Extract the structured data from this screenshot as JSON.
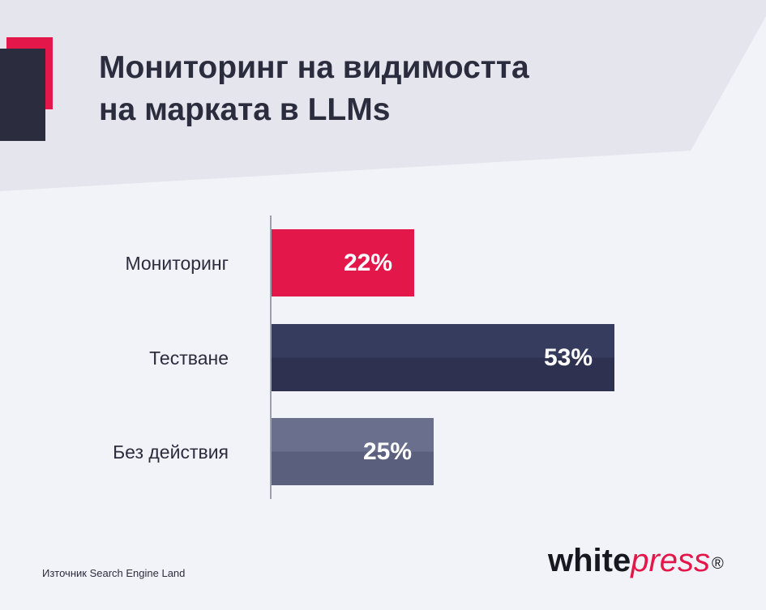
{
  "title": {
    "line1": "Мониторинг на видимостта",
    "line2": "на марката в LLMs"
  },
  "chart_data": {
    "type": "bar",
    "orientation": "horizontal",
    "title": "Мониторинг на видимостта на марката в LLMs",
    "categories": [
      "Мониторинг",
      "Тестване",
      "Без действия"
    ],
    "values": [
      22,
      53,
      25
    ],
    "value_labels": [
      "22%",
      "53%",
      "25%"
    ],
    "unit": "%",
    "xlim": [
      0,
      100
    ],
    "grid": false,
    "legend": "none",
    "colors": [
      "#e3174a",
      "#363c5e",
      "#6a6f8d"
    ],
    "colors_bottom": [
      "#e3174a",
      "#2e3150",
      "#5b5f7e"
    ]
  },
  "source": "Източник Search Engine Land",
  "logo": {
    "part1": "white",
    "part2": "press",
    "reg": "®"
  },
  "colors": {
    "background": "#f2f3f8",
    "header_band": "#e4e5ed",
    "accent": "#e3174a",
    "dark": "#2b2d3e"
  }
}
